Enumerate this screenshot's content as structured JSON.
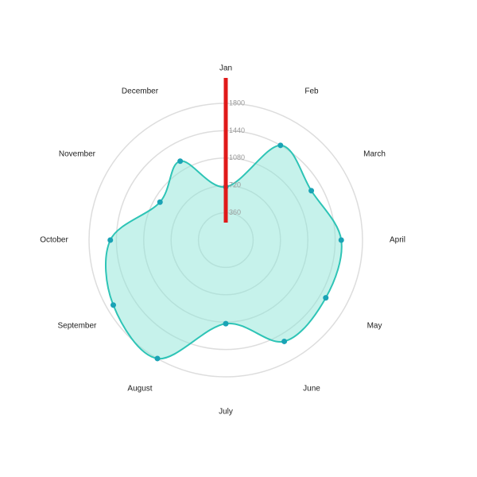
{
  "chart_data": {
    "type": "radar",
    "categories": [
      "Jan",
      "Feb",
      "March",
      "April",
      "May",
      "June",
      "July",
      "August",
      "September",
      "October",
      "November",
      "December"
    ],
    "values": [
      700,
      1440,
      1300,
      1520,
      1520,
      1540,
      1100,
      1800,
      1710,
      1520,
      1000,
      1200
    ],
    "color": "#2ec4b6",
    "fill": "#8ee6d8",
    "point_color": "#1aa3b5",
    "rlim": [
      0,
      1800
    ],
    "rticks": [
      360,
      720,
      1080,
      1440,
      1800
    ],
    "grid": true
  }
}
